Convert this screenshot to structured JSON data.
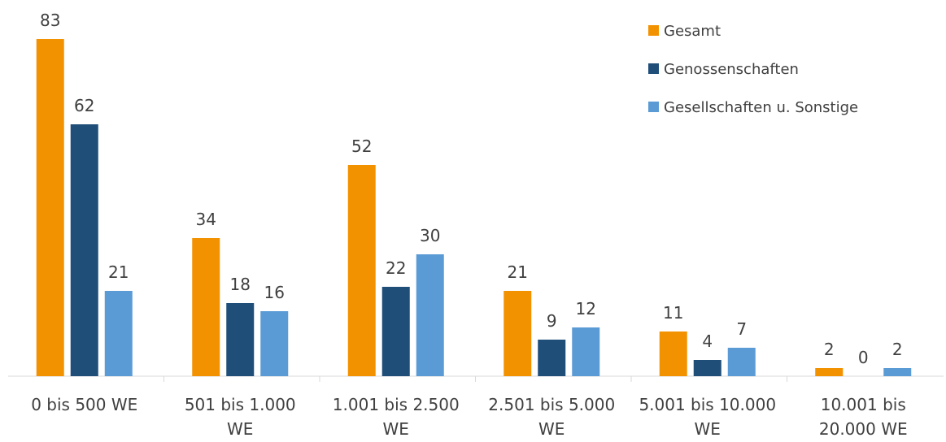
{
  "chart_data": {
    "type": "bar",
    "categories": [
      [
        "0 bis 500 WE"
      ],
      [
        "501 bis 1.000",
        "WE"
      ],
      [
        "1.001 bis 2.500",
        "WE"
      ],
      [
        "2.501 bis 5.000",
        "WE"
      ],
      [
        "5.001 bis 10.000",
        "WE"
      ],
      [
        "10.001 bis",
        "20.000 WE"
      ]
    ],
    "series": [
      {
        "name": "Gesamt",
        "color": "#F39200",
        "values": [
          83,
          34,
          52,
          21,
          11,
          2
        ]
      },
      {
        "name": "Genossenschaften",
        "color": "#1F4E79",
        "values": [
          62,
          18,
          22,
          9,
          4,
          0
        ]
      },
      {
        "name": "Gesellschaften u. Sonstige",
        "color": "#5B9BD5",
        "values": [
          21,
          16,
          30,
          12,
          7,
          2
        ]
      }
    ],
    "ylim": [
      0,
      83
    ],
    "data_labels": true,
    "grid": false,
    "legend_position": "top-right"
  }
}
